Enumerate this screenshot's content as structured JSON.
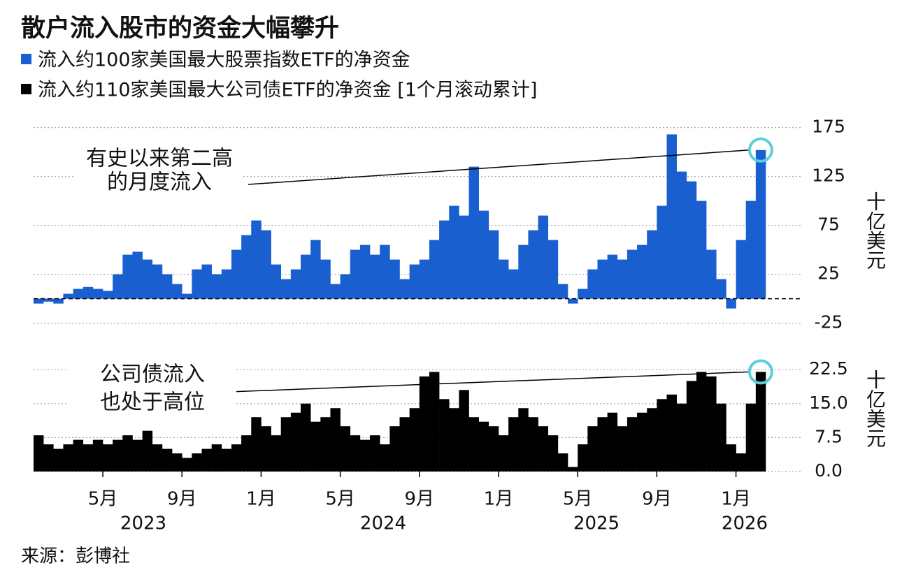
{
  "title": "散户流入股市的资金大幅攀升",
  "source": "来源：彭博社",
  "x_year_labels": [
    "2023",
    "2024",
    "2025",
    "2026"
  ],
  "chart_data": [
    {
      "type": "bar",
      "categories": [
        null,
        null,
        null,
        null,
        null,
        null,
        null,
        "5月",
        null,
        null,
        null,
        null,
        null,
        null,
        null,
        "9月",
        null,
        null,
        null,
        null,
        null,
        null,
        null,
        "1月",
        null,
        null,
        null,
        null,
        null,
        null,
        null,
        "5月",
        null,
        null,
        null,
        null,
        null,
        null,
        null,
        "9月",
        null,
        null,
        null,
        null,
        null,
        null,
        null,
        "1月",
        null,
        null,
        null,
        null,
        null,
        null,
        null,
        "5月",
        null,
        null,
        null,
        null,
        null,
        null,
        null,
        "9月",
        null,
        null,
        null,
        null,
        null,
        null,
        null,
        "1月",
        null,
        null
      ],
      "series": [
        {
          "name": "流入约100家美国最大股票指数ETF的净资金",
          "color": "#1a5fd0",
          "values": [
            -5,
            -3,
            -5,
            5,
            10,
            12,
            10,
            8,
            25,
            45,
            48,
            40,
            35,
            25,
            15,
            5,
            30,
            35,
            25,
            30,
            50,
            65,
            80,
            70,
            35,
            20,
            30,
            45,
            60,
            40,
            15,
            25,
            50,
            55,
            45,
            55,
            40,
            20,
            35,
            40,
            60,
            80,
            95,
            85,
            135,
            90,
            70,
            40,
            30,
            55,
            70,
            85,
            60,
            15,
            -5,
            10,
            30,
            40,
            45,
            40,
            50,
            55,
            70,
            95,
            168,
            130,
            120,
            100,
            50,
            20,
            -10,
            60,
            100,
            152
          ]
        }
      ],
      "y_axis_label": "十亿美元",
      "annotation": [
        "有史以来第二高",
        "的月度流入"
      ],
      "ylim": [
        -36,
        184
      ],
      "yticks": [
        -25,
        25,
        75,
        125,
        175
      ],
      "grid": true
    },
    {
      "type": "bar",
      "categories": [
        null,
        null,
        null,
        null,
        null,
        null,
        null,
        "5月",
        null,
        null,
        null,
        null,
        null,
        null,
        null,
        "9月",
        null,
        null,
        null,
        null,
        null,
        null,
        null,
        "1月",
        null,
        null,
        null,
        null,
        null,
        null,
        null,
        "5月",
        null,
        null,
        null,
        null,
        null,
        null,
        null,
        "9月",
        null,
        null,
        null,
        null,
        null,
        null,
        null,
        "1月",
        null,
        null,
        null,
        null,
        null,
        null,
        null,
        "5月",
        null,
        null,
        null,
        null,
        null,
        null,
        null,
        "9月",
        null,
        null,
        null,
        null,
        null,
        null,
        null,
        "1月",
        null,
        null
      ],
      "series": [
        {
          "name": "流入约110家美国最大公司债ETF的净资金 [1个月滚动累计]",
          "color": "#000000",
          "values": [
            8,
            6,
            5,
            6,
            7,
            6,
            7,
            6,
            7,
            8,
            7,
            9,
            6,
            5,
            4,
            3,
            4,
            5,
            6,
            5,
            6,
            8,
            12,
            10,
            8,
            12,
            13,
            15,
            11,
            12,
            14,
            10,
            8,
            7,
            8,
            6,
            10,
            12,
            14,
            21,
            22,
            16,
            14,
            18,
            12,
            11,
            10,
            8,
            12,
            14,
            12,
            10,
            8,
            4,
            1,
            6,
            10,
            12,
            13,
            10,
            12,
            13,
            14,
            16,
            17,
            15,
            20,
            22,
            21,
            15,
            6,
            4,
            15,
            22
          ]
        }
      ],
      "y_axis_label": "十亿美元",
      "annotation": [
        "公司债流入",
        "也处于高位"
      ],
      "ylim": [
        0,
        27
      ],
      "yticks": [
        {
          "value": 0,
          "label": "0.0"
        },
        7.5,
        {
          "value": 15,
          "label": "15.0"
        },
        22.5
      ],
      "grid": true
    }
  ]
}
